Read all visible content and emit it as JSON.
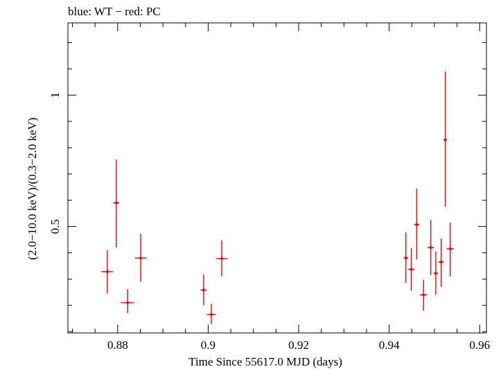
{
  "chart_data": {
    "type": "scatter",
    "title": "blue: WT − red: PC",
    "xlabel": "Time Since 55617.0 MJD (days)",
    "ylabel": "(2.0−10.0 keV)/(0.3−2.0 keV)",
    "xlim": [
      0.869,
      0.9615
    ],
    "ylim": [
      0.095,
      1.275
    ],
    "x_ticks": [
      {
        "value": 0.88,
        "label": "0.88"
      },
      {
        "value": 0.9,
        "label": "0.9"
      },
      {
        "value": 0.92,
        "label": "0.92"
      },
      {
        "value": 0.94,
        "label": "0.94"
      },
      {
        "value": 0.96,
        "label": "0.96"
      }
    ],
    "y_ticks": [
      {
        "value": 0.5,
        "label": "0.5"
      },
      {
        "value": 1.0,
        "label": "1"
      }
    ],
    "series": [
      {
        "name": "PC",
        "color": "#ff0000",
        "points": [
          {
            "x": 0.8777,
            "xerr": 0.0013,
            "y": 0.328,
            "ylo": 0.245,
            "yhi": 0.41
          },
          {
            "x": 0.8797,
            "xerr": 0.0007,
            "y": 0.59,
            "ylo": 0.42,
            "yhi": 0.755
          },
          {
            "x": 0.8822,
            "xerr": 0.0015,
            "y": 0.21,
            "ylo": 0.17,
            "yhi": 0.262
          },
          {
            "x": 0.8851,
            "xerr": 0.0013,
            "y": 0.38,
            "ylo": 0.29,
            "yhi": 0.472
          },
          {
            "x": 0.899,
            "xerr": 0.0007,
            "y": 0.258,
            "ylo": 0.2,
            "yhi": 0.318
          },
          {
            "x": 0.9007,
            "xerr": 0.001,
            "y": 0.165,
            "ylo": 0.128,
            "yhi": 0.205
          },
          {
            "x": 0.903,
            "xerr": 0.0013,
            "y": 0.378,
            "ylo": 0.31,
            "yhi": 0.447
          },
          {
            "x": 0.9437,
            "xerr": 0.0005,
            "y": 0.38,
            "ylo": 0.285,
            "yhi": 0.478
          },
          {
            "x": 0.9449,
            "xerr": 0.0007,
            "y": 0.337,
            "ylo": 0.255,
            "yhi": 0.418
          },
          {
            "x": 0.9461,
            "xerr": 0.0006,
            "y": 0.507,
            "ylo": 0.375,
            "yhi": 0.645
          },
          {
            "x": 0.9476,
            "xerr": 0.0008,
            "y": 0.24,
            "ylo": 0.18,
            "yhi": 0.297
          },
          {
            "x": 0.9492,
            "xerr": 0.0007,
            "y": 0.42,
            "ylo": 0.315,
            "yhi": 0.525
          },
          {
            "x": 0.9503,
            "xerr": 0.0005,
            "y": 0.322,
            "ylo": 0.24,
            "yhi": 0.405
          },
          {
            "x": 0.9515,
            "xerr": 0.0006,
            "y": 0.365,
            "ylo": 0.27,
            "yhi": 0.455
          },
          {
            "x": 0.9524,
            "xerr": 0.0004,
            "y": 0.83,
            "ylo": 0.575,
            "yhi": 1.09
          },
          {
            "x": 0.9535,
            "xerr": 0.0008,
            "y": 0.415,
            "ylo": 0.31,
            "yhi": 0.515
          }
        ]
      }
    ]
  }
}
